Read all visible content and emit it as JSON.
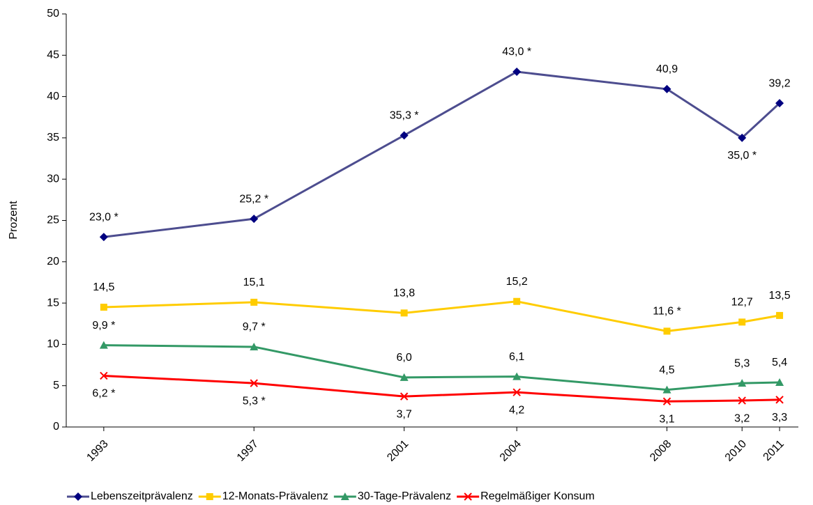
{
  "chart_data": {
    "type": "line",
    "y_label": "Prozent",
    "x": [
      1993,
      1997,
      2001,
      2004,
      2008,
      2010,
      2011
    ],
    "xlim": [
      1992,
      2011.5
    ],
    "xticks": [
      1993,
      1997,
      2001,
      2004,
      2008,
      2010,
      2011
    ],
    "ylim": [
      0,
      50
    ],
    "yticks": [
      0,
      5,
      10,
      15,
      20,
      25,
      30,
      35,
      40,
      45,
      50
    ],
    "legend": "bottom",
    "series": [
      {
        "name": "Lebenszeitprävalenz",
        "color": "#4d4d8f",
        "marker_color": "#000080",
        "marker": "diamond",
        "values": [
          23.0,
          25.2,
          35.3,
          43.0,
          40.9,
          35.0,
          39.2
        ],
        "value_labels": [
          "23,0 *",
          "25,2 *",
          "35,3 *",
          "43,0 *",
          "40,9",
          "35,0 *",
          "39,2"
        ]
      },
      {
        "name": "12-Monats-Prävalenz",
        "color": "#ffcc00",
        "marker_color": "#ffcc00",
        "marker": "square",
        "values": [
          14.5,
          15.1,
          13.8,
          15.2,
          11.6,
          12.7,
          13.5
        ],
        "value_labels": [
          "14,5",
          "15,1",
          "13,8",
          "15,2",
          "11,6 *",
          "12,7",
          "13,5"
        ]
      },
      {
        "name": "30-Tage-Prävalenz",
        "color": "#339966",
        "marker_color": "#339966",
        "marker": "triangle",
        "values": [
          9.9,
          9.7,
          6.0,
          6.1,
          4.5,
          5.3,
          5.4
        ],
        "value_labels": [
          "9,9 *",
          "9,7 *",
          "6,0",
          "6,1",
          "4,5",
          "5,3",
          "5,4"
        ]
      },
      {
        "name": "Regelmäßiger Konsum",
        "color": "#ff0000",
        "marker_color": "#ff0000",
        "marker": "x",
        "values": [
          6.2,
          5.3,
          3.7,
          4.2,
          3.1,
          3.2,
          3.3
        ],
        "value_labels": [
          "6,2 *",
          "5,3 *",
          "3,7",
          "4,2",
          "3,1",
          "3,2",
          "3,3"
        ]
      }
    ]
  }
}
